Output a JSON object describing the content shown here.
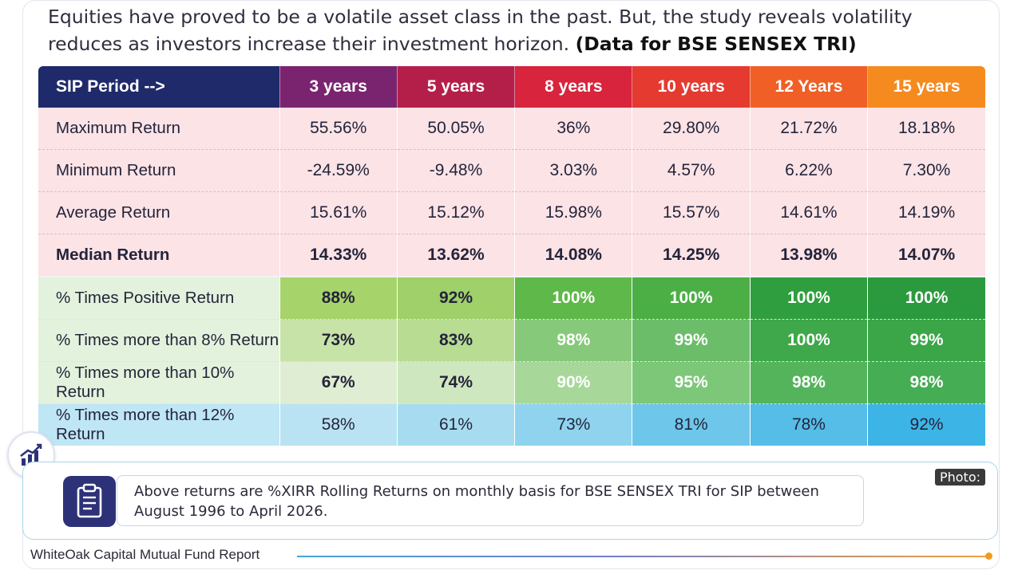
{
  "intro": {
    "text": "Equities have proved to be a volatile asset class in the past. But, the study reveals volatility reduces as investors increase their investment horizon. ",
    "bold": "(Data for BSE SENSEX TRI)"
  },
  "colors": {
    "header": [
      "#1f2a6a",
      "#7a2470",
      "#b41f4a",
      "#d8243c",
      "#e53a30",
      "#ef5f26",
      "#f58a1f"
    ],
    "return_rows": "#fbe3e6",
    "accent_dot": "#f39a1e"
  },
  "chart_data": {
    "type": "table",
    "title": "",
    "columns": [
      "SIP Period -->",
      "3 years",
      "5 years",
      "8 years",
      "10 years",
      "12 Years",
      "15 years"
    ],
    "rows": [
      {
        "label": "Maximum Return",
        "values": [
          "55.56%",
          "50.05%",
          "36%",
          "29.80%",
          "21.72%",
          "18.18%"
        ]
      },
      {
        "label": "Minimum Return",
        "values": [
          "-24.59%",
          "-9.48%",
          "3.03%",
          "4.57%",
          "6.22%",
          "7.30%"
        ]
      },
      {
        "label": "Average Return",
        "values": [
          "15.61%",
          "15.12%",
          "15.98%",
          "15.57%",
          "14.61%",
          "14.19%"
        ]
      },
      {
        "label": "Median Return",
        "values": [
          "14.33%",
          "13.62%",
          "14.08%",
          "14.25%",
          "13.98%",
          "14.07%"
        ]
      },
      {
        "label": "% Times Positive Return",
        "values": [
          "88%",
          "92%",
          "100%",
          "100%",
          "100%",
          "100%"
        ]
      },
      {
        "label": "% Times more than 8% Return",
        "values": [
          "73%",
          "83%",
          "98%",
          "99%",
          "100%",
          "99%"
        ]
      },
      {
        "label": "% Times more than 10% Return",
        "values": [
          "67%",
          "74%",
          "90%",
          "95%",
          "98%",
          "98%"
        ]
      },
      {
        "label": "% Times more than 12% Return",
        "values": [
          "58%",
          "61%",
          "73%",
          "81%",
          "78%",
          "92%"
        ]
      }
    ]
  },
  "note": {
    "icon": "clipboard-icon",
    "text": "Above returns are %XIRR Rolling Returns on monthly basis for BSE SENSEX TRI for SIP between August 1996 to April 2026."
  },
  "photo_tag": "Photo:",
  "badge_icon": "chart-growth-icon",
  "footer": "WhiteOak Capital Mutual Fund Report"
}
